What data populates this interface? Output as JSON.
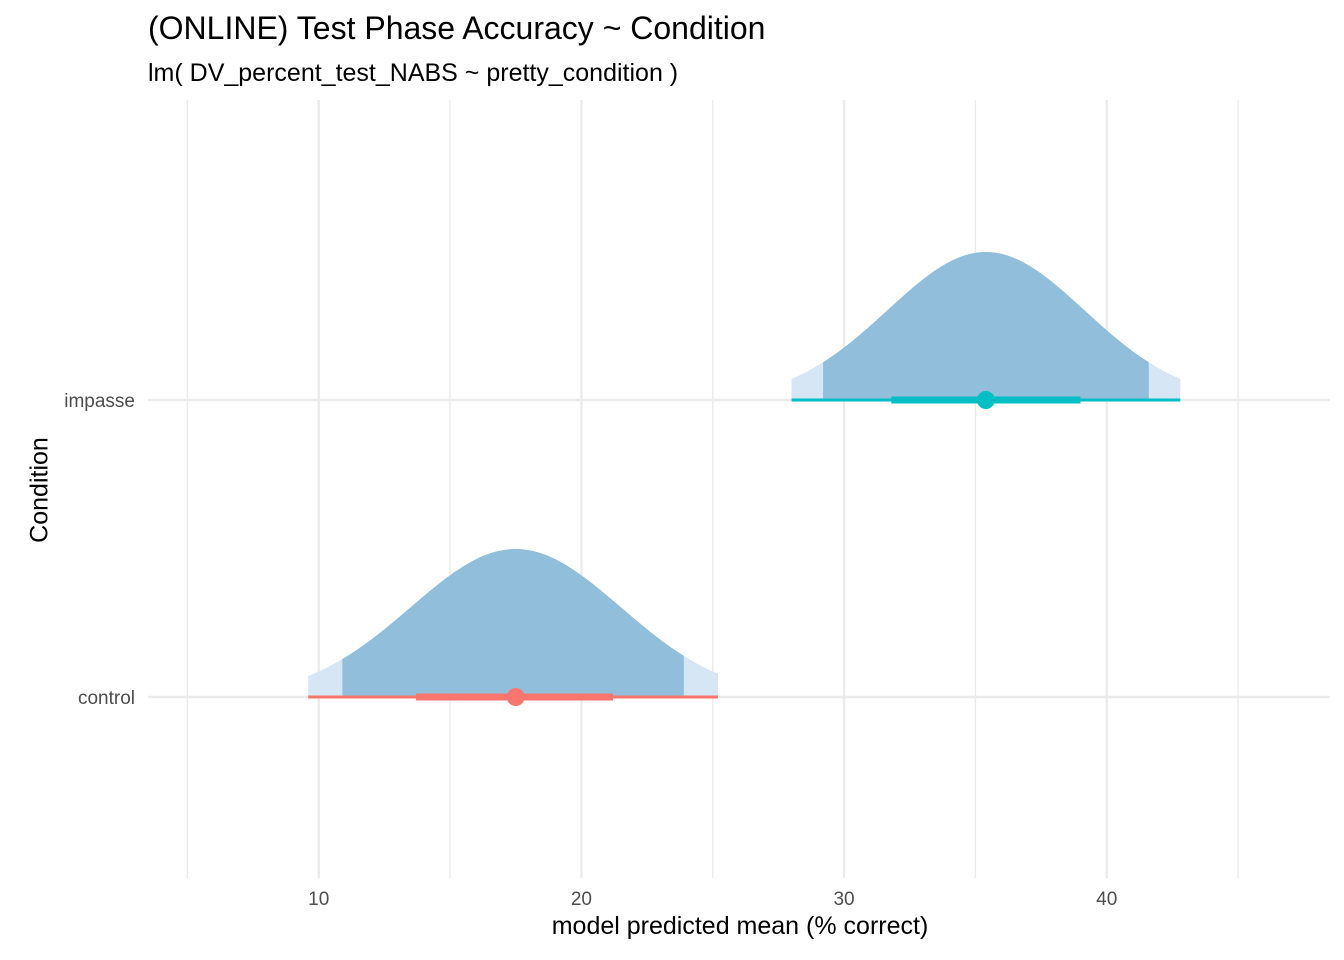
{
  "chart_data": {
    "type": "halfeye",
    "title": "(ONLINE) Test Phase Accuracy ~ Condition",
    "subtitle": "lm( DV_percent_test_NABS ~ pretty_condition )",
    "xlabel": "model predicted mean (% correct)",
    "ylabel": "Condition",
    "xlim": [
      3.5,
      48.5
    ],
    "x_ticks": [
      10,
      20,
      30,
      40
    ],
    "categories": [
      "impasse",
      "control"
    ],
    "grid": true,
    "colors": {
      "density_inner": "#91bfdb",
      "density_outer": "#d6e6f5",
      "grid": "#ebebeb",
      "control": "#f8766d",
      "impasse": "#00bfc4"
    },
    "series": [
      {
        "category": "impasse",
        "point": 35.4,
        "interval_66": [
          31.8,
          39.0
        ],
        "interval_95": [
          28.0,
          42.8
        ],
        "density_core": [
          29.2,
          41.6
        ],
        "sd": 3.75
      },
      {
        "category": "control",
        "point": 17.5,
        "interval_66": [
          13.7,
          21.2
        ],
        "interval_95": [
          9.6,
          25.2
        ],
        "density_core": [
          10.9,
          23.9
        ],
        "sd": 4.0
      }
    ]
  }
}
